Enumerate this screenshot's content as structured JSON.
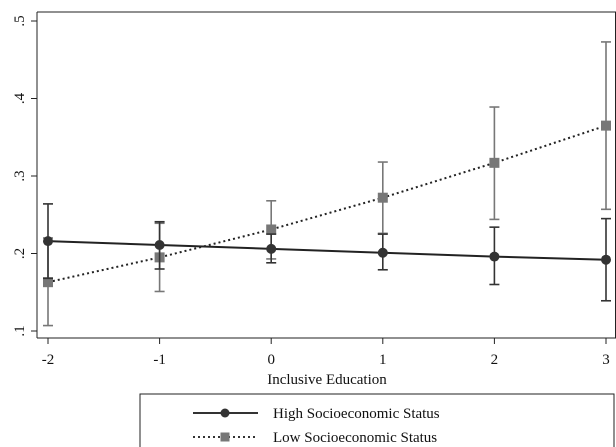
{
  "chart_data": {
    "type": "line",
    "xlabel": "Inclusive Education",
    "ylabel": "",
    "x": [
      -2,
      -1,
      0,
      1,
      2,
      3
    ],
    "x_ticks": [
      -2,
      -1,
      0,
      1,
      2,
      3
    ],
    "x_tick_labels": [
      "-2",
      "-1",
      "0",
      "1",
      "2",
      "3"
    ],
    "ylim": [
      0.1,
      0.5
    ],
    "y_ticks": [
      0.1,
      0.2,
      0.3,
      0.4,
      0.5
    ],
    "y_tick_labels": [
      ".1",
      ".2",
      ".3",
      ".4",
      ".5"
    ],
    "grid": false,
    "legend_placement": "bottom",
    "series": [
      {
        "name": "High Socioeconomic Status",
        "marker": "circle",
        "line_style": "solid",
        "color": "#333333",
        "values": [
          0.216,
          0.211,
          0.206,
          0.201,
          0.196,
          0.192
        ],
        "ci_low": [
          0.168,
          0.18,
          0.188,
          0.179,
          0.16,
          0.139
        ],
        "ci_high": [
          0.264,
          0.241,
          0.225,
          0.225,
          0.234,
          0.245
        ]
      },
      {
        "name": "Low Socioeconomic Status",
        "marker": "square",
        "line_style": "dotted",
        "color": "#777777",
        "values": [
          0.163,
          0.195,
          0.231,
          0.272,
          0.317,
          0.365
        ],
        "ci_low": [
          0.107,
          0.151,
          0.193,
          0.226,
          0.244,
          0.257
        ],
        "ci_high": [
          0.22,
          0.239,
          0.268,
          0.318,
          0.389,
          0.473
        ]
      }
    ]
  }
}
